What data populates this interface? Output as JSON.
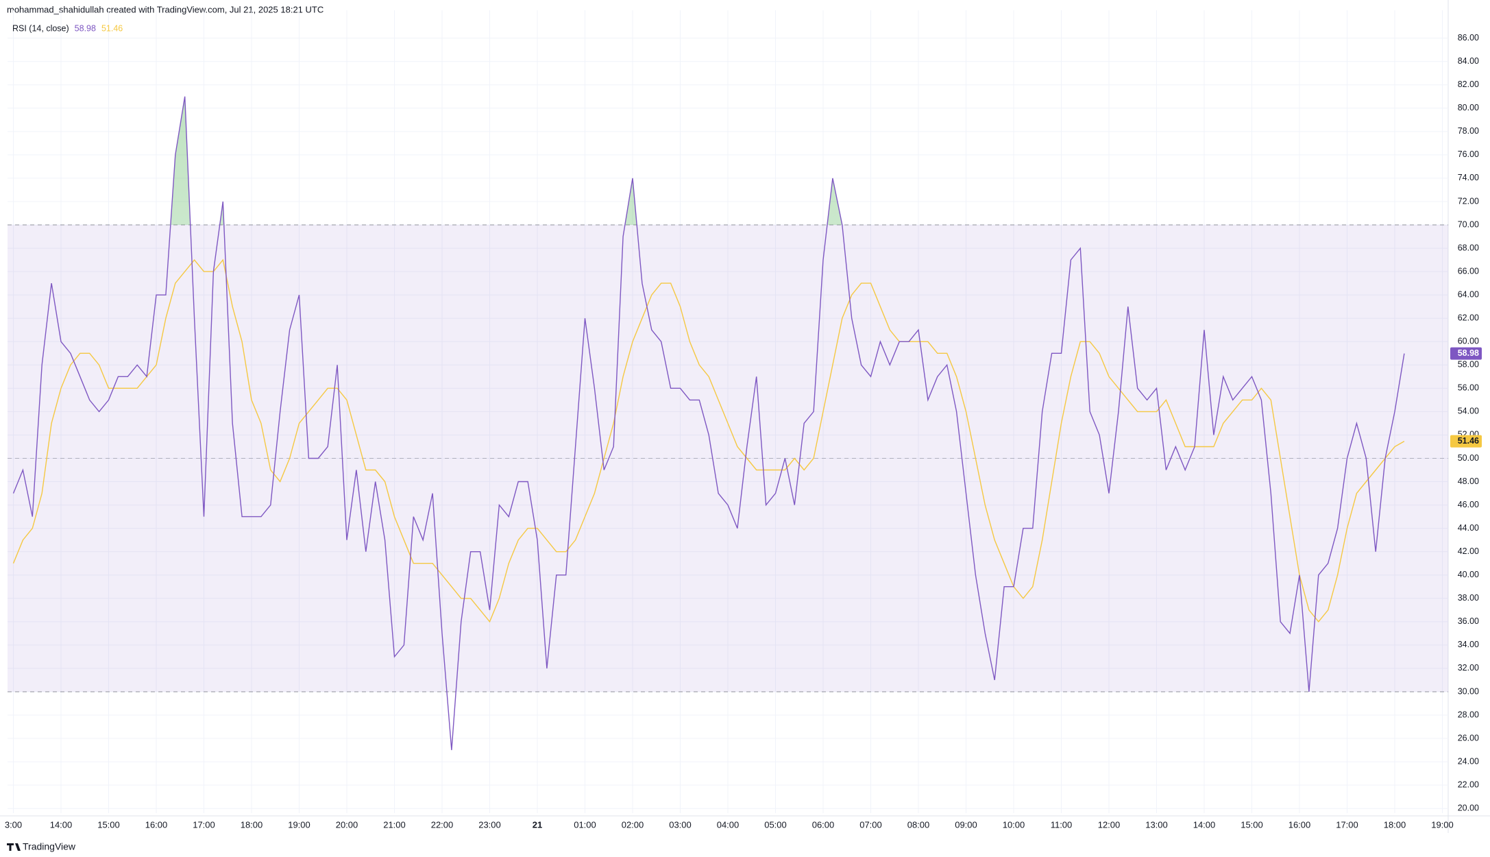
{
  "header": "mohammad_shahidullah created with TradingView.com, Jul 21, 2025 18:21 UTC",
  "footer": "TradingView",
  "chart_data": {
    "type": "line",
    "legend_title": "RSI (14, close)",
    "categories": [
      "3:00",
      null,
      null,
      null,
      null,
      "14:00",
      null,
      null,
      null,
      null,
      "15:00",
      null,
      null,
      null,
      null,
      "16:00",
      null,
      null,
      null,
      null,
      "17:00",
      null,
      null,
      null,
      null,
      "18:00",
      null,
      null,
      null,
      null,
      "19:00",
      null,
      null,
      null,
      null,
      "20:00",
      null,
      null,
      null,
      null,
      "21:00",
      null,
      null,
      null,
      null,
      "22:00",
      null,
      null,
      null,
      null,
      "23:00",
      null,
      null,
      null,
      null,
      "21",
      null,
      null,
      null,
      null,
      "01:00",
      null,
      null,
      null,
      null,
      "02:00",
      null,
      null,
      null,
      null,
      "03:00",
      null,
      null,
      null,
      null,
      "04:00",
      null,
      null,
      null,
      null,
      "05:00",
      null,
      null,
      null,
      null,
      "06:00",
      null,
      null,
      null,
      null,
      "07:00",
      null,
      null,
      null,
      null,
      "08:00",
      null,
      null,
      null,
      null,
      "09:00",
      null,
      null,
      null,
      null,
      "10:00",
      null,
      null,
      null,
      null,
      "11:00",
      null,
      null,
      null,
      null,
      "12:00",
      null,
      null,
      null,
      null,
      "13:00",
      null,
      null,
      null,
      null,
      "14:00",
      null,
      null,
      null,
      null,
      "15:00",
      null,
      null,
      null,
      null,
      "16:00",
      null,
      null,
      null,
      null,
      "17:00",
      null,
      null,
      null,
      null,
      "18:00",
      null,
      null,
      null,
      null,
      "19:00"
    ],
    "series": [
      {
        "color": "#7e57c2",
        "values": [
          47,
          49,
          45,
          58,
          65,
          60,
          59,
          57,
          55,
          54,
          55,
          57,
          57,
          58,
          57,
          64,
          64,
          76,
          81,
          62,
          45,
          66,
          72,
          53,
          45,
          45,
          45,
          46,
          54,
          61,
          64,
          50,
          50,
          51,
          58,
          43,
          49,
          42,
          48,
          43,
          33,
          34,
          45,
          43,
          47,
          35,
          25,
          36,
          42,
          42,
          37,
          46,
          45,
          48,
          48,
          43,
          32,
          40,
          40,
          51,
          62,
          56,
          49,
          51,
          69,
          74,
          65,
          61,
          60,
          56,
          56,
          55,
          55,
          52,
          47,
          46,
          44,
          51,
          57,
          46,
          47,
          50,
          46,
          53,
          54,
          67,
          74,
          70,
          62,
          58,
          57,
          60,
          58,
          60,
          60,
          61,
          55,
          57,
          58,
          54,
          47,
          40,
          35,
          31,
          39,
          39,
          44,
          44,
          54,
          59,
          59,
          67,
          68,
          54,
          52,
          47,
          54,
          63,
          56,
          55,
          56,
          49,
          51,
          49,
          51,
          61,
          52,
          57,
          55,
          56,
          57,
          55,
          47,
          36,
          35,
          40,
          30,
          40,
          41,
          44,
          50,
          53,
          50,
          42,
          50,
          54,
          58.98,
          null,
          null,
          null,
          null
        ]
      },
      {
        "color": "#f5c842",
        "values": [
          41,
          43,
          44,
          47,
          53,
          56,
          58,
          59,
          59,
          58,
          56,
          56,
          56,
          56,
          57,
          58,
          62,
          65,
          66,
          67,
          66,
          66,
          67,
          63,
          60,
          55,
          53,
          49,
          48,
          50,
          53,
          54,
          55,
          56,
          56,
          55,
          52,
          49,
          49,
          48,
          45,
          43,
          41,
          41,
          41,
          40,
          39,
          38,
          38,
          37,
          36,
          38,
          41,
          43,
          44,
          44,
          43,
          42,
          42,
          43,
          45,
          47,
          50,
          53,
          57,
          60,
          62,
          64,
          65,
          65,
          63,
          60,
          58,
          57,
          55,
          53,
          51,
          50,
          49,
          49,
          49,
          49,
          50,
          49,
          50,
          54,
          58,
          62,
          64,
          65,
          65,
          63,
          61,
          60,
          60,
          60,
          60,
          59,
          59,
          57,
          54,
          50,
          46,
          43,
          41,
          39,
          38,
          39,
          43,
          48,
          53,
          57,
          60,
          60,
          59,
          57,
          56,
          55,
          54,
          54,
          54,
          55,
          53,
          51,
          51,
          51,
          51,
          53,
          54,
          55,
          55,
          56,
          55,
          50,
          45,
          40,
          37,
          36,
          37,
          40,
          44,
          47,
          48,
          49,
          50,
          51,
          51.46,
          null,
          null,
          null,
          null
        ]
      }
    ],
    "upper_band": 70,
    "middle_band": 50,
    "lower_band": 30,
    "band_color": "#7e57c2",
    "overbought_color": "#4caf50",
    "ylim": [
      19.6,
      87.8
    ],
    "yticks": [
      {
        "value": 20,
        "label": "20.00"
      },
      {
        "value": 22,
        "label": "22.00"
      },
      {
        "value": 24,
        "label": "24.00"
      },
      {
        "value": 26,
        "label": "26.00"
      },
      {
        "value": 28,
        "label": "28.00"
      },
      {
        "value": 30,
        "label": "30.00"
      },
      {
        "value": 32,
        "label": "32.00"
      },
      {
        "value": 34,
        "label": "34.00"
      },
      {
        "value": 36,
        "label": "36.00"
      },
      {
        "value": 38,
        "label": "38.00"
      },
      {
        "value": 40,
        "label": "40.00"
      },
      {
        "value": 42,
        "label": "42.00"
      },
      {
        "value": 44,
        "label": "44.00"
      },
      {
        "value": 46,
        "label": "46.00"
      },
      {
        "value": 48,
        "label": "48.00"
      },
      {
        "value": 50,
        "label": "50.00"
      },
      {
        "value": 52,
        "label": "52.00"
      },
      {
        "value": 54,
        "label": "54.00"
      },
      {
        "value": 56,
        "label": "56.00"
      },
      {
        "value": 58,
        "label": "58.00"
      },
      {
        "value": 60,
        "label": "60.00"
      },
      {
        "value": 62,
        "label": "62.00"
      },
      {
        "value": 64,
        "label": "64.00"
      },
      {
        "value": 66,
        "label": "66.00"
      },
      {
        "value": 68,
        "label": "68.00"
      },
      {
        "value": 70,
        "label": "70.00"
      },
      {
        "value": 72,
        "label": "72.00"
      },
      {
        "value": 74,
        "label": "74.00"
      },
      {
        "value": 76,
        "label": "76.00"
      },
      {
        "value": 78,
        "label": "78.00"
      },
      {
        "value": 80,
        "label": "80.00"
      },
      {
        "value": 82,
        "label": "82.00"
      },
      {
        "value": 84,
        "label": "84.00"
      },
      {
        "value": 86,
        "label": "86.00"
      }
    ],
    "grid": true
  }
}
